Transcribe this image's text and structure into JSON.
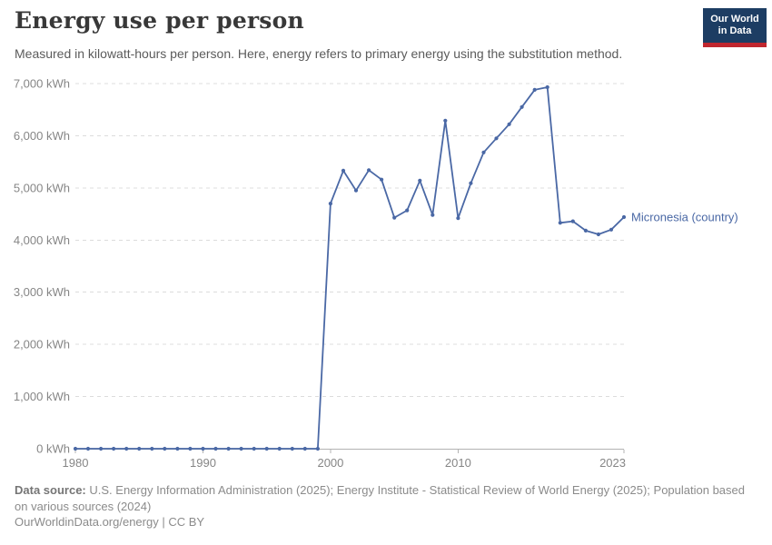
{
  "header": {
    "title": "Energy use per person",
    "subtitle": "Measured in kilowatt-hours per person. Here, energy refers to primary energy using the substitution method."
  },
  "logo": {
    "line1": "Our World",
    "line2": "in Data",
    "bg_color": "#1d3d63",
    "accent_color": "#c0262e"
  },
  "chart_data": {
    "type": "line",
    "title": "Energy use per person",
    "unit": "kWh",
    "xlim": [
      1980,
      2023
    ],
    "ylim": [
      0,
      7000
    ],
    "grid": "horizontal-dashed",
    "legend_position": "end-of-line-label",
    "xticks": [
      1980,
      1990,
      2000,
      2010,
      2023
    ],
    "yticks": [
      0,
      1000,
      2000,
      3000,
      4000,
      5000,
      6000,
      7000
    ],
    "ytick_labels": [
      "0 kWh",
      "1,000 kWh",
      "2,000 kWh",
      "3,000 kWh",
      "4,000 kWh",
      "5,000 kWh",
      "6,000 kWh",
      "7,000 kWh"
    ],
    "series": [
      {
        "name": "Micronesia (country)",
        "color": "#4a68a5",
        "x": [
          1980,
          1981,
          1982,
          1983,
          1984,
          1985,
          1986,
          1987,
          1988,
          1989,
          1990,
          1991,
          1992,
          1993,
          1994,
          1995,
          1996,
          1997,
          1998,
          1999,
          2000,
          2001,
          2002,
          2003,
          2004,
          2005,
          2006,
          2007,
          2008,
          2009,
          2010,
          2011,
          2012,
          2013,
          2014,
          2015,
          2016,
          2017,
          2018,
          2019,
          2020,
          2021,
          2022,
          2023
        ],
        "values": [
          0,
          0,
          0,
          0,
          0,
          0,
          0,
          0,
          0,
          0,
          0,
          0,
          0,
          0,
          0,
          0,
          0,
          0,
          0,
          0,
          4700,
          5330,
          4950,
          5340,
          5160,
          4430,
          4570,
          5140,
          4480,
          6290,
          4420,
          5090,
          5680,
          5950,
          6220,
          6550,
          6880,
          6930,
          4330,
          4360,
          4180,
          4110,
          4200,
          4440
        ]
      }
    ],
    "colors": {
      "gridline": "#dcdcdc",
      "axis": "#b3b3b3",
      "tick_label": "#868686"
    }
  },
  "footer": {
    "source_label": "Data source:",
    "source_text": "U.S. Energy Information Administration (2025); Energy Institute - Statistical Review of World Energy (2025); Population based on various sources (2024)",
    "link": "OurWorldinData.org/energy",
    "separator": "|",
    "license": "CC BY"
  }
}
